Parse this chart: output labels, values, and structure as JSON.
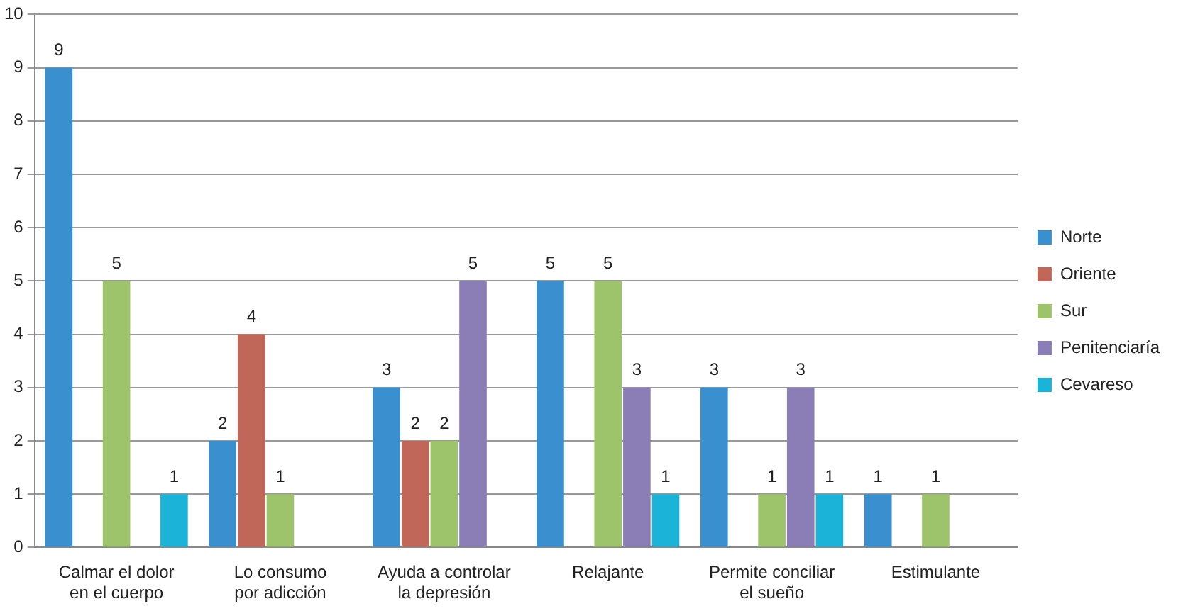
{
  "chart_data": {
    "type": "bar",
    "categories": [
      "Calmar el dolor en el cuerpo",
      "Lo consumo por adicción",
      "Ayuda a controlar la depresión",
      "Relajante",
      "Permite conciliar el sueño",
      "Estimulante"
    ],
    "series": [
      {
        "name": "Norte",
        "color": "#3a8fcf",
        "values": [
          9,
          2,
          3,
          5,
          3,
          1
        ],
        "value_labels": [
          "9",
          "2",
          "3",
          "5",
          "3",
          "1"
        ]
      },
      {
        "name": "Oriente",
        "color": "#c0675a",
        "values": [
          0,
          4,
          2,
          0,
          0,
          0
        ],
        "value_labels": [
          null,
          "4",
          "2",
          null,
          null,
          null
        ]
      },
      {
        "name": "Sur",
        "color": "#9dc46a",
        "values": [
          5,
          1,
          2,
          5,
          1,
          1
        ],
        "value_labels": [
          "5",
          "1",
          "2",
          "5",
          "1",
          "1"
        ]
      },
      {
        "name": "Penitenciaría",
        "color": "#8b7db5",
        "values": [
          0,
          0,
          5,
          3,
          3,
          0
        ],
        "value_labels": [
          null,
          null,
          "5",
          "3",
          "3",
          null
        ]
      },
      {
        "name": "Cevareso",
        "color": "#1bb3d8",
        "values": [
          1,
          0,
          0,
          1,
          1,
          0
        ],
        "value_labels": [
          "1",
          null,
          null,
          "1",
          "1",
          null
        ]
      }
    ],
    "ylim": [
      0,
      10
    ],
    "yticks": [
      0,
      1,
      2,
      3,
      4,
      5,
      6,
      7,
      8,
      9,
      10
    ],
    "grid": "y",
    "legend": "right"
  }
}
